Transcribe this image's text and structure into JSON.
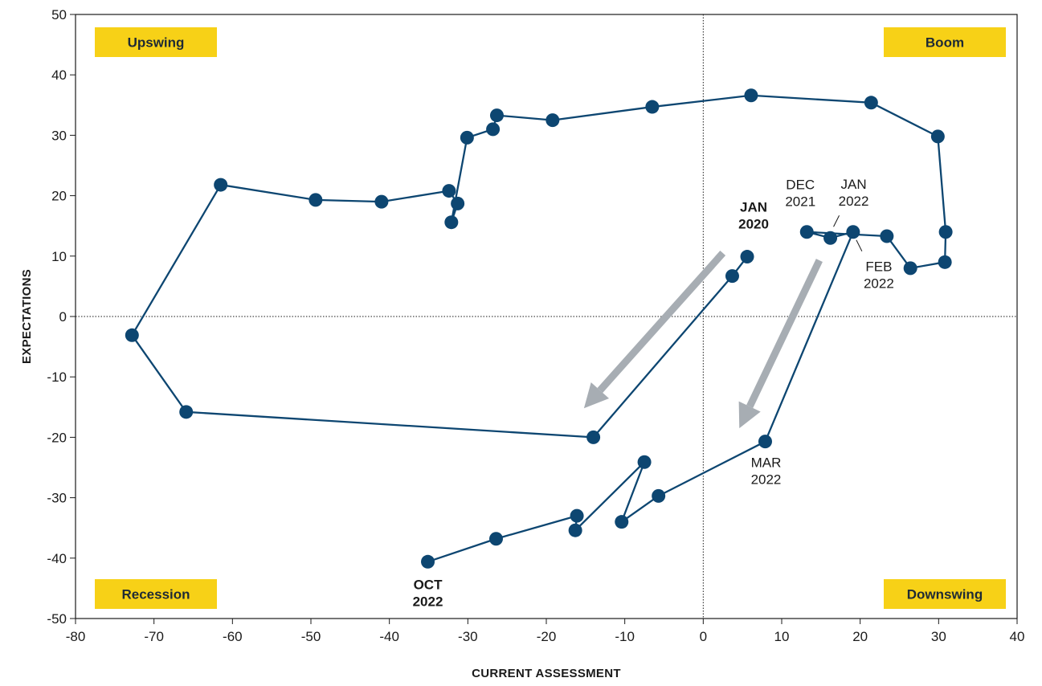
{
  "colors": {
    "line": "#0d4671",
    "marker": "#0d4671",
    "quadrant_fill": "#f7d117",
    "arrow": "#a7adb3",
    "axis": "#1a1a1a"
  },
  "chart_data": {
    "type": "scatter",
    "connected": true,
    "xlabel": "CURRENT ASSESSMENT",
    "ylabel": "EXPECTATIONS",
    "xlim": [
      -80,
      40
    ],
    "ylim": [
      -50,
      50
    ],
    "x_ticks": [
      -80,
      -70,
      -60,
      -50,
      -40,
      -30,
      -20,
      -10,
      0,
      10,
      20,
      30,
      40
    ],
    "y_ticks": [
      -50,
      -40,
      -30,
      -20,
      -10,
      0,
      10,
      20,
      30,
      40,
      50
    ],
    "reference_lines": {
      "x": 0,
      "y": 0,
      "style": "dotted"
    },
    "grid": false,
    "quadrants": {
      "top_left": "Upswing",
      "top_right": "Boom",
      "bottom_left": "Recession",
      "bottom_right": "Downswing"
    },
    "points": [
      {
        "x": 5.6,
        "y": 9.9
      },
      {
        "x": 3.7,
        "y": 6.7
      },
      {
        "x": -14,
        "y": -20
      },
      {
        "x": -65.9,
        "y": -15.8
      },
      {
        "x": -72.8,
        "y": -3.1
      },
      {
        "x": -61.5,
        "y": 21.8
      },
      {
        "x": -49.4,
        "y": 19.3
      },
      {
        "x": -41,
        "y": 19
      },
      {
        "x": -32.4,
        "y": 20.8
      },
      {
        "x": -31.3,
        "y": 18.7
      },
      {
        "x": -32.1,
        "y": 15.6
      },
      {
        "x": -30.1,
        "y": 29.6
      },
      {
        "x": -26.8,
        "y": 31
      },
      {
        "x": -26.3,
        "y": 33.3
      },
      {
        "x": -19.2,
        "y": 32.5
      },
      {
        "x": -6.5,
        "y": 34.7
      },
      {
        "x": 6.1,
        "y": 36.6
      },
      {
        "x": 21.4,
        "y": 35.4
      },
      {
        "x": 29.9,
        "y": 29.8
      },
      {
        "x": 30.9,
        "y": 14
      },
      {
        "x": 30.8,
        "y": 9
      },
      {
        "x": 26.4,
        "y": 8
      },
      {
        "x": 23.4,
        "y": 13.3
      },
      {
        "x": 13.2,
        "y": 14
      },
      {
        "x": 16.2,
        "y": 13
      },
      {
        "x": 19.1,
        "y": 14
      },
      {
        "x": 7.9,
        "y": -20.7
      },
      {
        "x": -5.7,
        "y": -29.7
      },
      {
        "x": -10.4,
        "y": -34
      },
      {
        "x": -7.5,
        "y": -24.1
      },
      {
        "x": -16.3,
        "y": -35.4
      },
      {
        "x": -16.1,
        "y": -33
      },
      {
        "x": -26.4,
        "y": -36.8
      },
      {
        "x": -35.1,
        "y": -40.6
      }
    ],
    "annotations": [
      {
        "x": 5.6,
        "y": 9.9,
        "lines": [
          "JAN",
          "2020"
        ],
        "bold": true
      },
      {
        "x": 13.2,
        "y": 14,
        "lines": [
          "DEC",
          "2021"
        ],
        "bold": false
      },
      {
        "x": 16.2,
        "y": 13,
        "lines": [
          "JAN",
          "2022"
        ],
        "bold": false
      },
      {
        "x": 19.1,
        "y": 14,
        "lines": [
          "FEB",
          "2022"
        ],
        "bold": false
      },
      {
        "x": 7.9,
        "y": -20.7,
        "lines": [
          "MAR",
          "2022"
        ],
        "bold": false
      },
      {
        "x": -35.1,
        "y": -40.6,
        "lines": [
          "OCT",
          "2022"
        ],
        "bold": true
      }
    ],
    "arrows": [
      {
        "from": {
          "x": 2.5,
          "y": 10.5
        },
        "to": {
          "x": -15.2,
          "y": -15.2
        }
      },
      {
        "from": {
          "x": 14.8,
          "y": 9.3
        },
        "to": {
          "x": 4.6,
          "y": -18.5
        }
      }
    ]
  }
}
